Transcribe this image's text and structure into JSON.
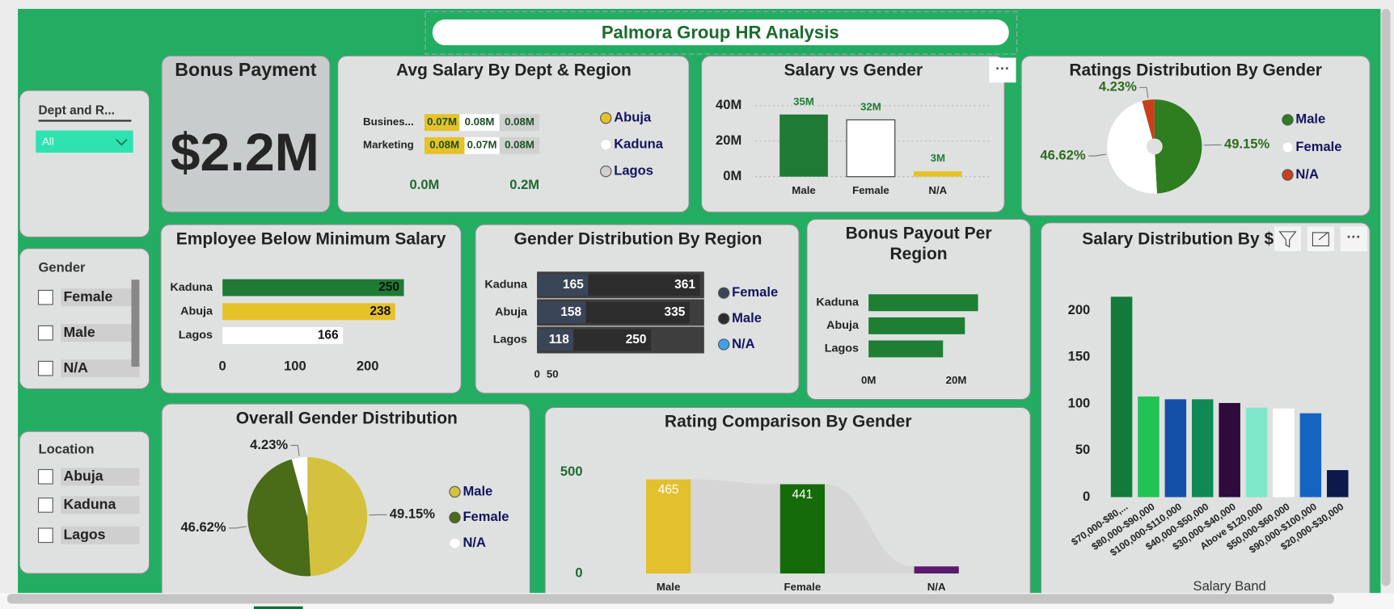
{
  "header": {
    "title": "Palmora Group HR Analysis"
  },
  "slicers": [
    {
      "title": "Dept and R...",
      "selected": "All"
    },
    {
      "title": "Gender",
      "options": [
        "Female",
        "Male",
        "N/A"
      ]
    },
    {
      "title": "Location",
      "options": [
        "Abuja",
        "Kaduna",
        "Lagos"
      ]
    }
  ],
  "kpi": {
    "title": "Bonus Payment",
    "value": "$2.2M"
  },
  "chart_data": [
    {
      "type": "bar",
      "horizontal": true,
      "stacked": true,
      "title": "Avg Salary By Dept & Region",
      "categories": [
        "Busines...",
        "Marketing"
      ],
      "series": [
        {
          "name": "Abuja",
          "color": "#e6c229",
          "values": [
            70000,
            80000
          ],
          "value_labels": [
            "0.07M",
            "0.08M"
          ]
        },
        {
          "name": "Kaduna",
          "color": "#ffffff",
          "values": [
            80000,
            70000
          ],
          "value_labels": [
            "0.08M",
            "0.07M"
          ]
        },
        {
          "name": "Lagos",
          "color": "#d0d0d0",
          "values": [
            80000,
            80000
          ],
          "value_labels": [
            "0.08M",
            "0.08M"
          ]
        }
      ],
      "xlim": [
        0,
        250000
      ],
      "xticks": [
        {
          "value": 0,
          "label": "0.0M"
        },
        {
          "value": 200000,
          "label": "0.2M"
        }
      ],
      "legend": "right"
    },
    {
      "type": "bar",
      "title": "Salary vs Gender",
      "categories": [
        "Male",
        "Female",
        "N/A"
      ],
      "values": [
        35000000,
        32000000,
        3000000
      ],
      "value_labels": [
        "35M",
        "32M",
        "3M"
      ],
      "colors": [
        "#1e7a34",
        "#ffffff",
        "#e6c229"
      ],
      "ylim": [
        0,
        40000000
      ],
      "yticks": [
        {
          "value": 0,
          "label": "0M"
        },
        {
          "value": 20000000,
          "label": "20M"
        },
        {
          "value": 40000000,
          "label": "40M"
        }
      ],
      "grid": true
    },
    {
      "type": "donut",
      "title": "Ratings Distribution By Gender",
      "categories": [
        "Male",
        "Female",
        "N/A"
      ],
      "values": [
        49.15,
        46.62,
        4.23
      ],
      "value_labels": [
        "49.15%",
        "46.62%",
        "4.23%"
      ],
      "colors": [
        "#2e7d1f",
        "#ffffff",
        "#c8401b"
      ],
      "legend": "right"
    },
    {
      "type": "bar",
      "horizontal": true,
      "title": "Employee Below Minimum Salary",
      "categories": [
        "Kaduna",
        "Abuja",
        "Lagos"
      ],
      "values": [
        250,
        238,
        166
      ],
      "colors": [
        "#1e7a34",
        "#e6c229",
        "#ffffff"
      ],
      "xlim": [
        0,
        250
      ],
      "xticks": [
        0,
        100,
        200
      ],
      "data_labels": true
    },
    {
      "type": "bar",
      "horizontal": true,
      "stacked": true,
      "title": "Gender Distribution By Region",
      "categories": [
        "Kaduna",
        "Abuja",
        "Lagos"
      ],
      "series": [
        {
          "name": "Female",
          "color": "#3a4658",
          "values": [
            165,
            158,
            118
          ]
        },
        {
          "name": "Male",
          "color": "#2d2d2d",
          "values": [
            361,
            335,
            250
          ]
        },
        {
          "name": "N/A",
          "color": "#3fa0f0",
          "values": [
            null,
            null,
            null
          ]
        }
      ],
      "xlim": [
        0,
        540
      ],
      "xticks": [
        0,
        50
      ],
      "legend": "right",
      "data_labels": true
    },
    {
      "type": "bar",
      "horizontal": true,
      "title": "Bonus Payout Per Region",
      "categories": [
        "Kaduna",
        "Abuja",
        "Lagos"
      ],
      "values": [
        25000000,
        22000000,
        17000000
      ],
      "color": "#1e7e34",
      "xlim": [
        0,
        30000000
      ],
      "xticks": [
        {
          "value": 0,
          "label": "0M"
        },
        {
          "value": 20000000,
          "label": "20M"
        }
      ]
    },
    {
      "type": "bar",
      "title": "Salary Distribution By $",
      "x_label": "Salary Band",
      "categories": [
        "$70,000-$80,...",
        "$80,000-$90,000",
        "$100,000-$110,000",
        "$40,000-$50,000",
        "$30,000-$40,000",
        "Above $120,000",
        "$50,000-$60,000",
        "$90,000-$100,000",
        "$20,000-$30,000"
      ],
      "values": [
        215,
        108,
        105,
        105,
        101,
        96,
        95,
        90,
        29
      ],
      "colors": [
        "#127a3a",
        "#21c354",
        "#1450a8",
        "#0f8a55",
        "#2e0a3d",
        "#7ee8c8",
        "#ffffff",
        "#1565c0",
        "#0b1a4a"
      ],
      "ylim": [
        0,
        220
      ],
      "yticks": [
        0,
        50,
        100,
        150,
        200
      ]
    },
    {
      "type": "pie",
      "title": "Overall Gender Distribution",
      "categories": [
        "Male",
        "Female",
        "N/A"
      ],
      "values": [
        49.15,
        46.62,
        4.23
      ],
      "value_labels": [
        "49.15%",
        "46.62%",
        "4.23%"
      ],
      "colors": [
        "#d4c23e",
        "#4a6b18",
        "#ffffff"
      ],
      "legend": "right"
    },
    {
      "type": "bar",
      "title": "Rating Comparison By Gender",
      "categories": [
        "Male",
        "Female",
        "N/A"
      ],
      "values": [
        465,
        441,
        35
      ],
      "value_labels": [
        "465",
        "441",
        null
      ],
      "colors": [
        "#e3c02e",
        "#156b0a",
        "#5a1a6e"
      ],
      "ylim": [
        0,
        500
      ],
      "yticks": [
        0,
        500
      ],
      "ribbon": true
    }
  ]
}
